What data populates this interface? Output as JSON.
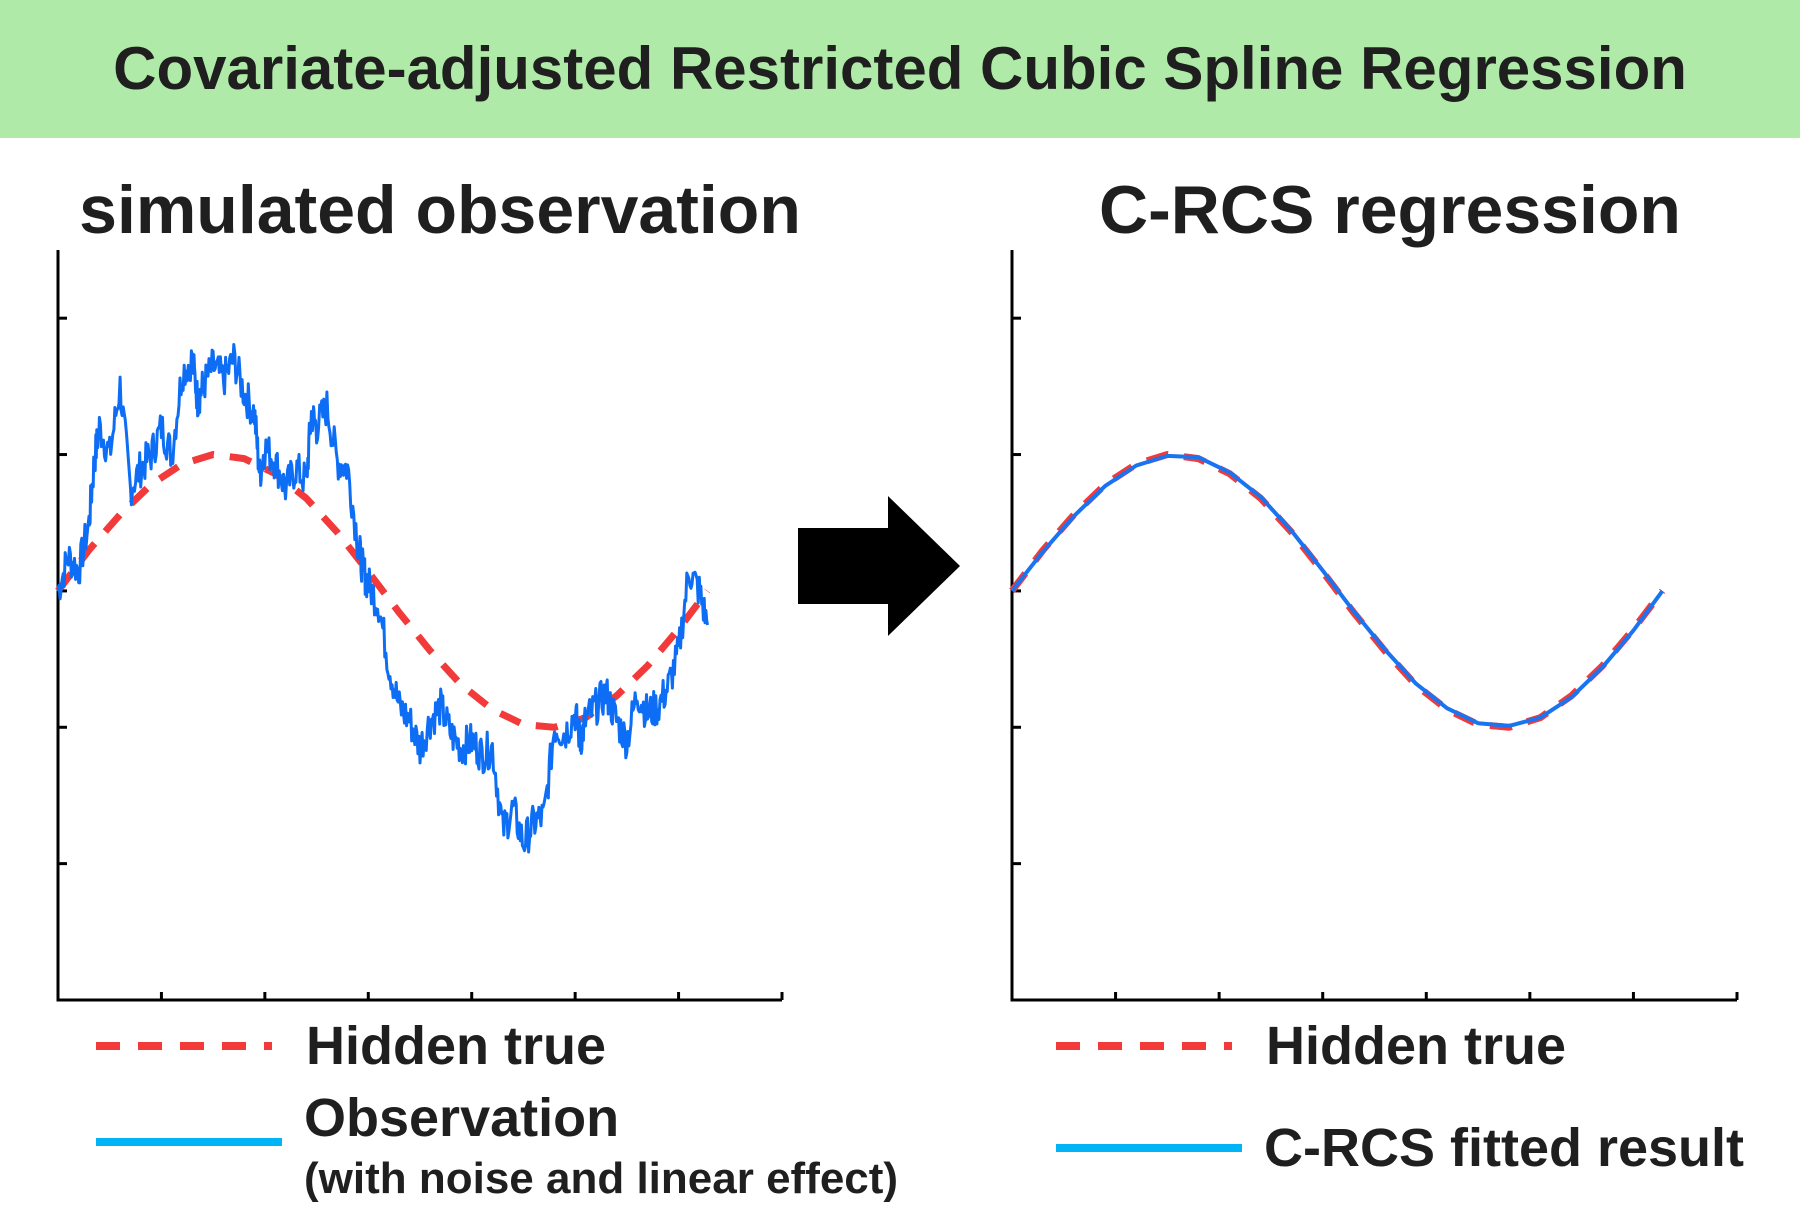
{
  "title": "Covariate-adjusted Restricted Cubic Spline Regression",
  "colors": {
    "banner": "#b0eaa8",
    "true_curve": "#f23a3a",
    "observation": "#0d6ef5",
    "fitted": "#1a74f0",
    "legend_blue": "#00b4f5",
    "arrow": "#000000"
  },
  "chart_data": [
    {
      "type": "line",
      "title": "simulated observation",
      "xlabel": "",
      "ylabel": "",
      "xlim": [
        0,
        7
      ],
      "ylim": [
        -3,
        2.5
      ],
      "grid": false,
      "legend_position": "bottom",
      "series": [
        {
          "name": "Hidden true",
          "style": "dashed",
          "x": [
            0,
            0.3,
            0.6,
            0.9,
            1.2,
            1.5,
            1.8,
            2.1,
            2.4,
            2.7,
            3.0,
            3.3,
            3.6,
            3.9,
            4.2,
            4.5,
            4.8,
            5.1,
            5.4,
            5.7,
            6.0,
            6.28
          ],
          "y": [
            0,
            0.3,
            0.56,
            0.78,
            0.93,
            1.0,
            0.97,
            0.86,
            0.68,
            0.43,
            0.14,
            -0.16,
            -0.44,
            -0.69,
            -0.87,
            -0.98,
            -1.0,
            -0.93,
            -0.77,
            -0.55,
            -0.28,
            0
          ]
        },
        {
          "name": "Observation",
          "name_note": "(with noise and linear effect)",
          "style": "solid",
          "x": [
            0,
            0.1,
            0.2,
            0.3,
            0.35,
            0.4,
            0.5,
            0.6,
            0.7,
            0.8,
            0.9,
            1.0,
            1.1,
            1.2,
            1.3,
            1.35,
            1.4,
            1.5,
            1.6,
            1.7,
            1.8,
            1.9,
            1.95,
            2.0,
            2.1,
            2.2,
            2.3,
            2.4,
            2.45,
            2.5,
            2.6,
            2.7,
            2.8,
            2.9,
            2.95,
            3.0,
            3.1,
            3.2,
            3.3,
            3.4,
            3.5,
            3.6,
            3.7,
            3.8,
            3.9,
            4.0,
            4.1,
            4.2,
            4.3,
            4.4,
            4.5,
            4.6,
            4.7,
            4.8,
            4.9,
            5.0,
            5.05,
            5.1,
            5.2,
            5.3,
            5.4,
            5.5,
            5.6,
            5.7,
            5.8,
            5.9,
            6.0,
            6.1,
            6.2,
            6.28
          ],
          "y": [
            0,
            0.25,
            0.15,
            0.5,
            0.95,
            1.2,
            1.0,
            1.5,
            0.75,
            0.9,
            1.0,
            1.2,
            1.0,
            1.6,
            1.7,
            1.4,
            1.5,
            1.65,
            1.55,
            1.7,
            1.45,
            1.3,
            0.85,
            1.05,
            0.95,
            0.75,
            0.9,
            0.8,
            1.3,
            1.2,
            1.35,
            0.95,
            0.9,
            0.35,
            0.15,
            0.05,
            -0.1,
            -0.55,
            -0.85,
            -0.95,
            -1.15,
            -0.95,
            -0.85,
            -1.05,
            -1.15,
            -1.1,
            -1.2,
            -1.15,
            -1.75,
            -1.6,
            -1.85,
            -1.7,
            -1.65,
            -1.0,
            -1.05,
            -0.9,
            -1.1,
            -0.95,
            -0.85,
            -0.75,
            -0.95,
            -1.1,
            -0.75,
            -0.9,
            -0.85,
            -0.7,
            -0.45,
            0.15,
            0.0,
            -0.25
          ]
        }
      ]
    },
    {
      "type": "line",
      "title": "C-RCS regression",
      "xlabel": "",
      "ylabel": "",
      "xlim": [
        0,
        7
      ],
      "ylim": [
        -3,
        2.5
      ],
      "grid": false,
      "legend_position": "bottom",
      "series": [
        {
          "name": "Hidden true",
          "style": "dashed",
          "x": [
            0,
            0.3,
            0.6,
            0.9,
            1.2,
            1.5,
            1.8,
            2.1,
            2.4,
            2.7,
            3.0,
            3.3,
            3.6,
            3.9,
            4.2,
            4.5,
            4.8,
            5.1,
            5.4,
            5.7,
            6.0,
            6.28
          ],
          "y": [
            0,
            0.3,
            0.56,
            0.78,
            0.93,
            1.0,
            0.97,
            0.86,
            0.68,
            0.43,
            0.14,
            -0.16,
            -0.44,
            -0.69,
            -0.87,
            -0.98,
            -1.0,
            -0.93,
            -0.77,
            -0.55,
            -0.28,
            0
          ]
        },
        {
          "name": "C-RCS fitted result",
          "style": "solid",
          "x": [
            0,
            0.3,
            0.6,
            0.9,
            1.2,
            1.5,
            1.8,
            2.1,
            2.4,
            2.7,
            3.0,
            3.3,
            3.6,
            3.9,
            4.2,
            4.5,
            4.8,
            5.1,
            5.4,
            5.7,
            6.0,
            6.28
          ],
          "y": [
            0,
            0.29,
            0.55,
            0.77,
            0.92,
            0.99,
            0.98,
            0.87,
            0.69,
            0.44,
            0.15,
            -0.15,
            -0.43,
            -0.68,
            -0.86,
            -0.97,
            -0.99,
            -0.93,
            -0.78,
            -0.56,
            -0.29,
            0
          ]
        }
      ]
    }
  ]
}
